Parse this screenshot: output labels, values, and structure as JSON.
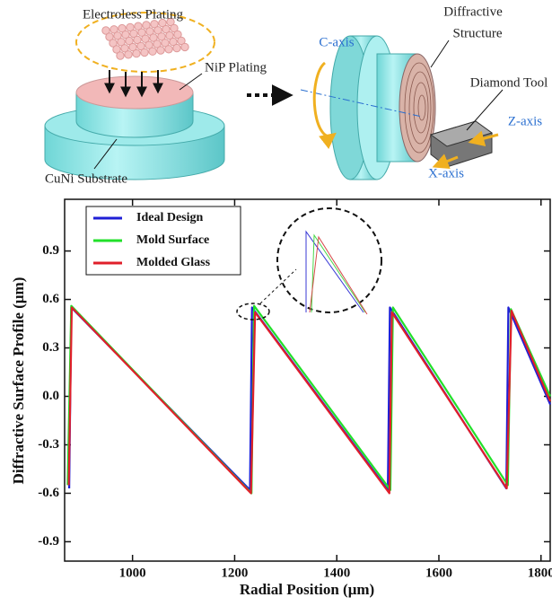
{
  "diagram": {
    "labels": [
      "Electroless Plating",
      "NiP Plating",
      "CuNi Substrate",
      "C-axis",
      "Diffractive",
      "Structure",
      "Diamond Tool",
      "Z-axis",
      "X-axis"
    ]
  },
  "chart_data": {
    "type": "line",
    "x_label": "Radial Position (μm)",
    "y_label": "Diffractive Surface  Profile (μm)",
    "xlim": [
      867,
      1818
    ],
    "xticks": [
      1000,
      1200,
      1400,
      1600,
      1800
    ],
    "ylim": [
      -1.02,
      1.22
    ],
    "yticks": [
      -0.9,
      -0.6,
      -0.3,
      {
        "value": 0,
        "label": "0.0"
      },
      0.3,
      0.6,
      0.9
    ],
    "legend": "upper left",
    "series": [
      {
        "name": "Ideal Design",
        "color": "#1f1fd6",
        "x": [
          876,
          880,
          1230,
          1234,
          1500,
          1504,
          1732,
          1736,
          1818
        ],
        "values": [
          -0.57,
          0.55,
          -0.58,
          0.55,
          -0.58,
          0.55,
          -0.57,
          0.55,
          -0.05
        ]
      },
      {
        "name": "Mold Surface",
        "color": "#22e02a",
        "x": [
          873,
          880,
          1233,
          1238,
          1505,
          1510,
          1735,
          1741,
          1818
        ],
        "values": [
          -0.55,
          0.56,
          -0.6,
          0.56,
          -0.58,
          0.55,
          -0.55,
          0.54,
          0
        ]
      },
      {
        "name": "Molded Glass",
        "color": "#e01f2a",
        "x": [
          875,
          881,
          1232,
          1240,
          1503,
          1508,
          1733,
          1742,
          1818
        ],
        "values": [
          -0.55,
          0.55,
          -0.6,
          0.52,
          -0.6,
          0.52,
          -0.57,
          0.53,
          -0.03
        ]
      }
    ]
  }
}
